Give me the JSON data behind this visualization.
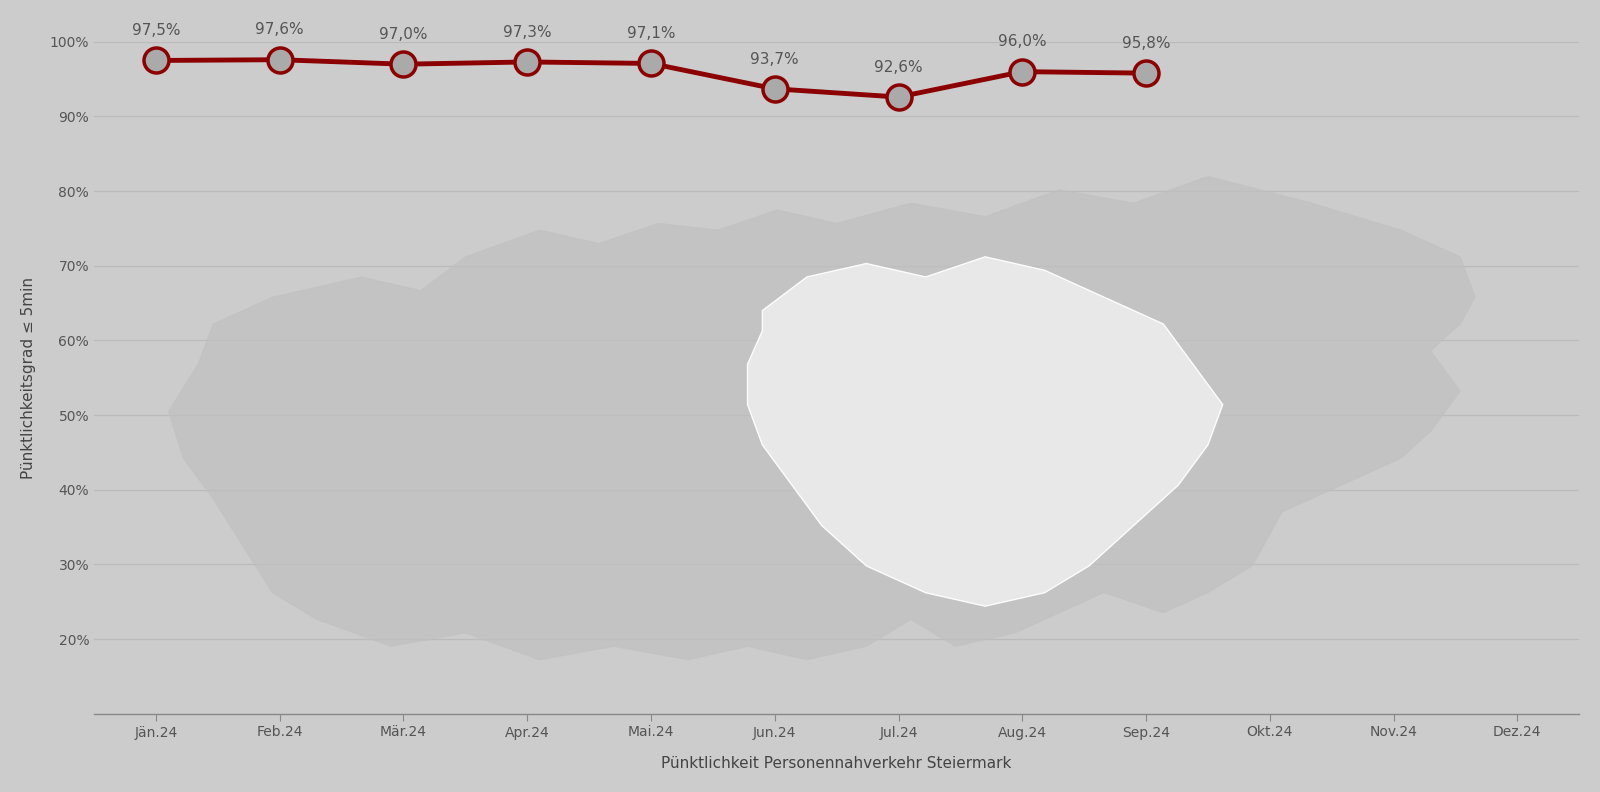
{
  "months": [
    "Jän.24",
    "Feb.24",
    "Mär.24",
    "Apr.24",
    "Mai.24",
    "Jun.24",
    "Jul.24",
    "Aug.24",
    "Sep.24",
    "Okt.24",
    "Nov.24",
    "Dez.24"
  ],
  "values": [
    97.5,
    97.6,
    97.0,
    97.3,
    97.1,
    93.7,
    92.6,
    96.0,
    95.8,
    null,
    null,
    null
  ],
  "labels": [
    "97,5%",
    "97,6%",
    "97,0%",
    "97,3%",
    "97,1%",
    "93,7%",
    "92,6%",
    "96,0%",
    "95,8%"
  ],
  "line_color": "#8B0000",
  "marker_face_color": "#AAAAAA",
  "marker_edge_color": "#8B0000",
  "background_color": "#CCCCCC",
  "grid_color": "#BBBBBB",
  "ylabel": "Pünktlichkeitsgrad ≤ 5min",
  "xlabel": "Pünktlichkeit Personennahverkehr Steiermark",
  "ylim_min": 10,
  "ylim_max": 100,
  "yticks": [
    20,
    30,
    40,
    50,
    60,
    70,
    80,
    90,
    100
  ],
  "ytick_labels": [
    "20%",
    "30%",
    "40%",
    "50%",
    "60%",
    "70%",
    "80%",
    "90%",
    "100%"
  ],
  "xlabel_color": "#444444",
  "ylabel_color": "#444444",
  "tick_color": "#555555",
  "label_fontsize": 11,
  "tick_fontsize": 10,
  "annotation_fontsize": 11,
  "annotation_color": "#555555",
  "austria_color": "#C0C0C0",
  "steiermark_color": "#EBEBEB",
  "steiermark_edge_color": "#FFFFFF"
}
